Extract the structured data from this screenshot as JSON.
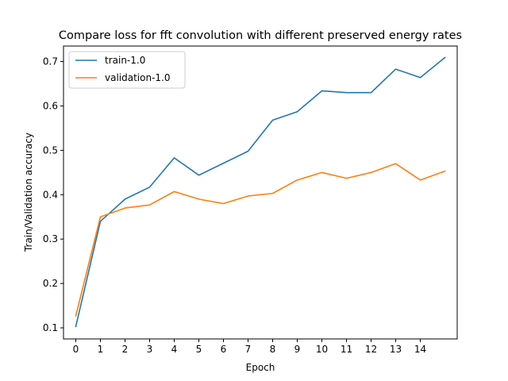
{
  "chart_data": {
    "type": "line",
    "title": "Compare loss for fft convolution with different preserved energy rates",
    "xlabel": "Epoch",
    "ylabel": "Train/Validation accuracy",
    "x": [
      0,
      1,
      2,
      3,
      4,
      5,
      6,
      7,
      8,
      9,
      10,
      11,
      12,
      13,
      14,
      15
    ],
    "xticks": [
      "0",
      "1",
      "2",
      "3",
      "4",
      "5",
      "6",
      "7",
      "8",
      "9",
      "10",
      "11",
      "12",
      "13",
      "14"
    ],
    "yticks": [
      "0.1",
      "0.2",
      "0.3",
      "0.4",
      "0.5",
      "0.6",
      "0.7"
    ],
    "xlim": [
      -0.5,
      15.5
    ],
    "ylim": [
      0.075,
      0.735
    ],
    "grid": false,
    "legend_position": "top-left",
    "series": [
      {
        "name": "train-1.0",
        "color": "#1f77b4",
        "values": [
          0.103,
          0.34,
          0.39,
          0.417,
          0.483,
          0.444,
          0.471,
          0.498,
          0.568,
          0.587,
          0.634,
          0.63,
          0.63,
          0.683,
          0.664,
          0.709
        ]
      },
      {
        "name": "validation-1.0",
        "color": "#ff7f0e",
        "values": [
          0.127,
          0.35,
          0.37,
          0.377,
          0.407,
          0.39,
          0.38,
          0.397,
          0.403,
          0.433,
          0.45,
          0.437,
          0.45,
          0.47,
          0.433,
          0.453
        ]
      }
    ]
  }
}
